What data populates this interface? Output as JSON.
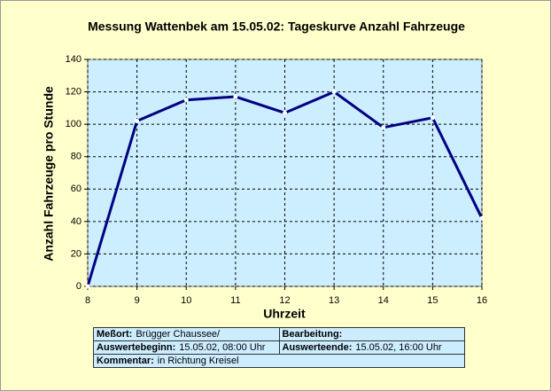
{
  "chart_data": {
    "type": "line",
    "title": "Messung Wattenbek am 15.05.02: Tageskurve Anzahl Fahrzeuge",
    "x_label": "Uhrzeit",
    "y_label": "Anzahl Fahrzeuge pro Stunde",
    "x": [
      8,
      9,
      10,
      11,
      12,
      13,
      14,
      15,
      16
    ],
    "values": [
      0,
      102,
      115,
      117,
      107,
      120,
      98,
      104,
      42
    ],
    "color": "#000080",
    "xlim": [
      8,
      16
    ],
    "xticks": [
      8,
      9,
      10,
      11,
      12,
      13,
      14,
      15,
      16
    ],
    "ylim": [
      0,
      140
    ],
    "yticks": [
      0,
      20,
      40,
      60,
      80,
      100,
      120,
      140
    ],
    "grid": true
  },
  "table": {
    "rows": [
      [
        {
          "label": "Meßort:",
          "value": "Brügger Chaussee/"
        },
        {
          "label": "Bearbeitung:"
        }
      ],
      [
        {
          "label": "Auswertebeginn:",
          "value": "15.05.02, 08:00 Uhr"
        },
        {
          "label": "Auswerteende:",
          "value": "15.05.02, 16:00 Uhr"
        }
      ],
      [
        {
          "label": "Kommentar:",
          "value": "in Richtung Kreisel"
        }
      ]
    ]
  }
}
